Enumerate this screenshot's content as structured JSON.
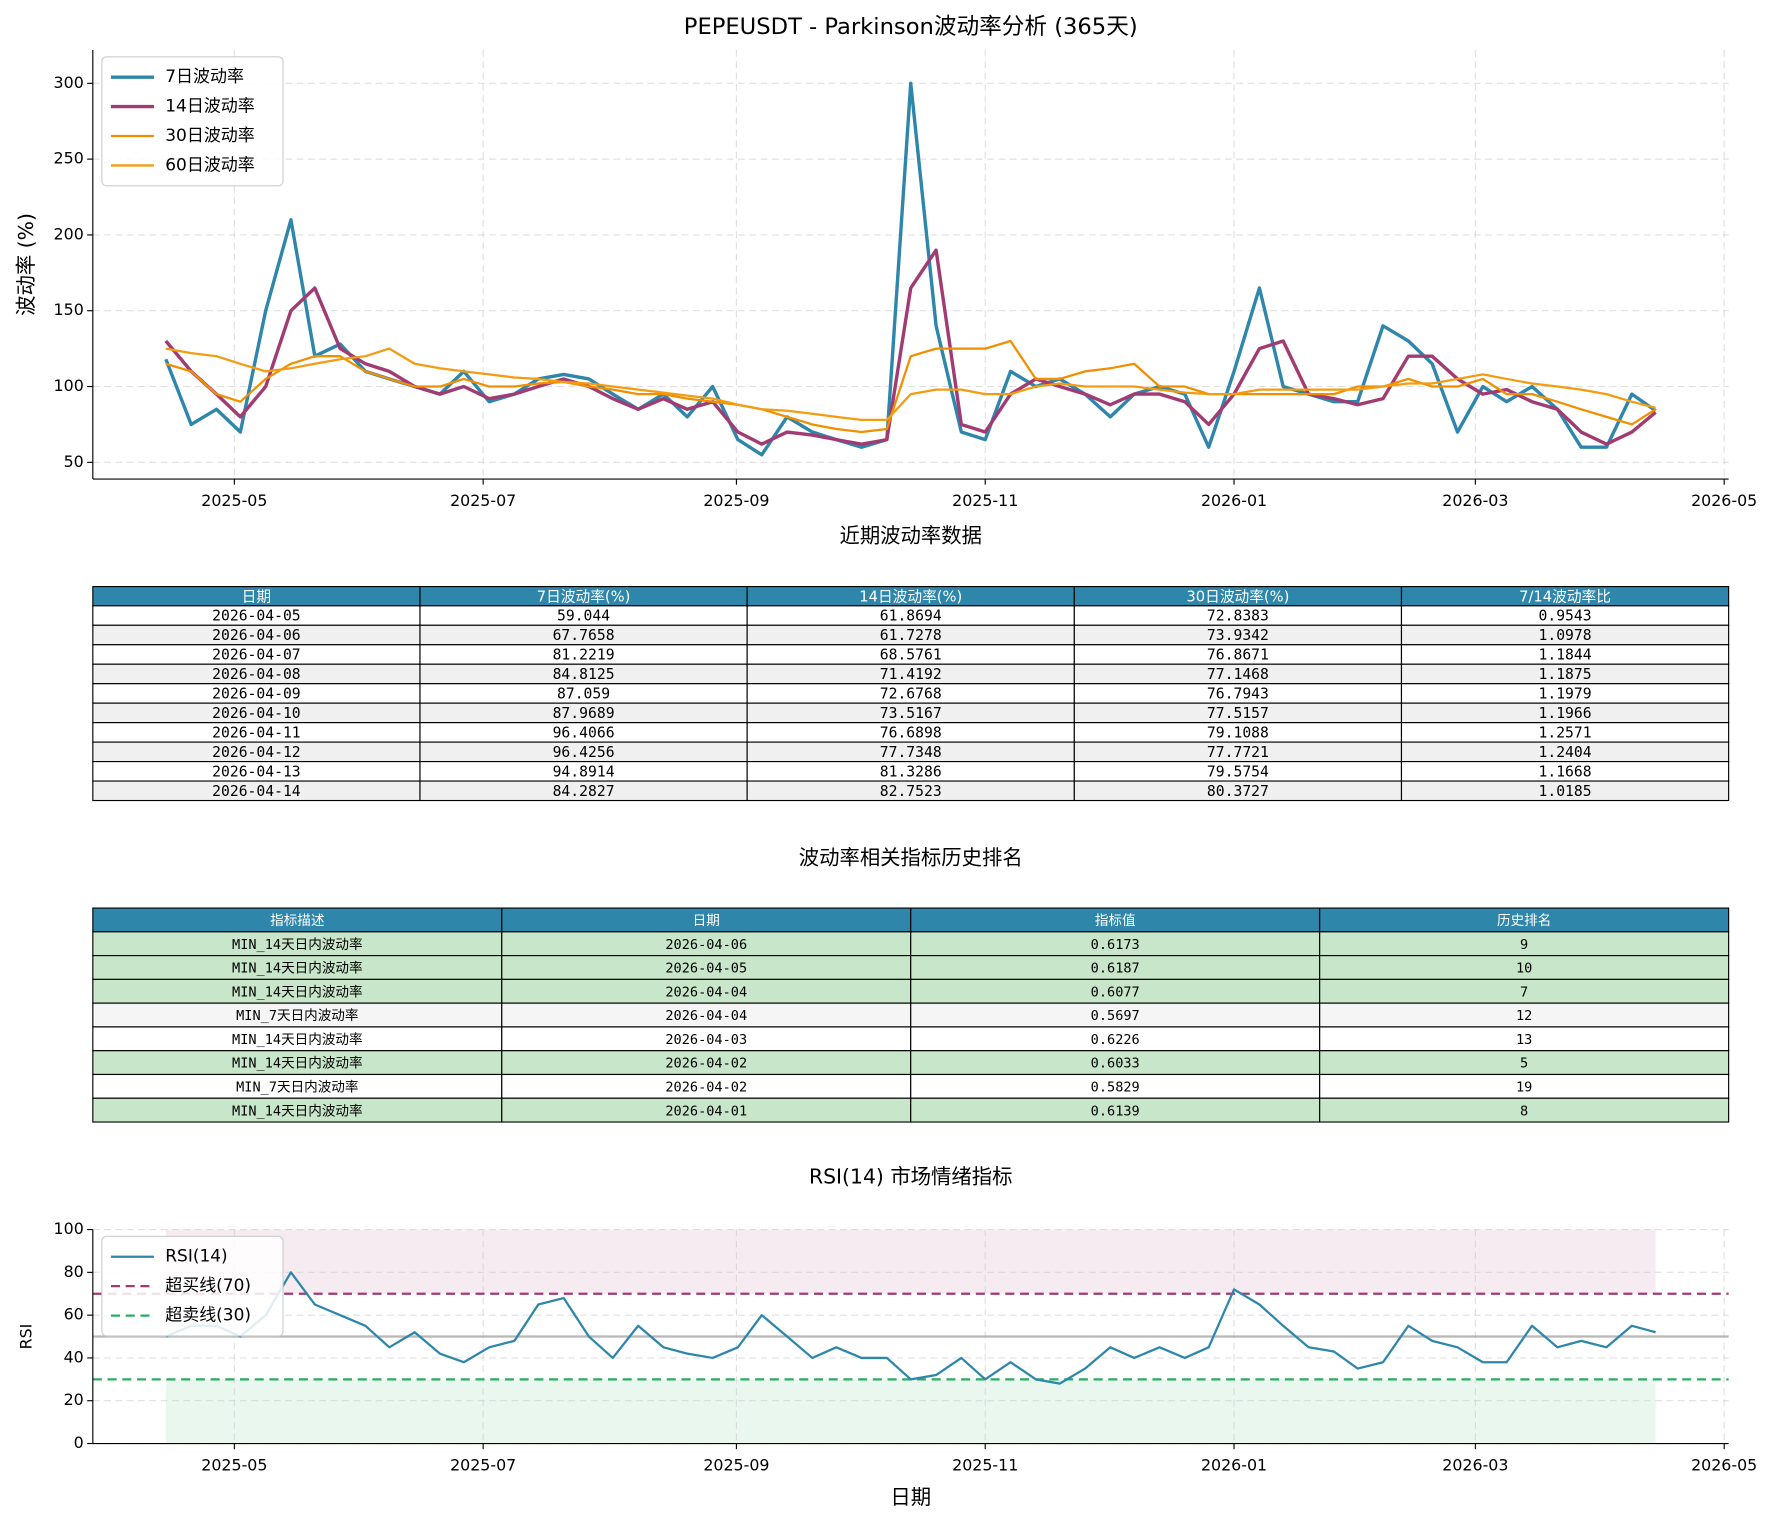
{
  "chart_data": [
    {
      "type": "line",
      "title": "PEPEUSDT - Parkinson波动率分析 (365天)",
      "ylabel": "波动率 (%)",
      "x": [
        2025.283,
        2025.3,
        2025.317,
        2025.333,
        2025.35,
        2025.367,
        2025.383,
        2025.4,
        2025.417,
        2025.433,
        2025.45,
        2025.467,
        2025.483,
        2025.5,
        2025.517,
        2025.533,
        2025.55,
        2025.567,
        2025.583,
        2025.6,
        2025.617,
        2025.633,
        2025.65,
        2025.667,
        2025.683,
        2025.7,
        2025.717,
        2025.733,
        2025.75,
        2025.767,
        2025.783,
        2025.8,
        2025.817,
        2025.833,
        2025.85,
        2025.867,
        2025.883,
        2025.9,
        2025.917,
        2025.933,
        2025.95,
        2025.967,
        2025.983,
        2026.0,
        2026.017,
        2026.033,
        2026.05,
        2026.067,
        2026.083,
        2026.1,
        2026.117,
        2026.133,
        2026.15,
        2026.167,
        2026.183,
        2026.2,
        2026.217,
        2026.233,
        2026.25,
        2026.267,
        2026.283
      ],
      "series": [
        {
          "name": "7日波动率",
          "color": "#2e86ab",
          "linewidth": 3,
          "values": [
            118,
            75,
            85,
            70,
            150,
            210,
            120,
            128,
            110,
            105,
            100,
            95,
            110,
            90,
            95,
            105,
            108,
            105,
            95,
            85,
            95,
            80,
            100,
            65,
            55,
            80,
            70,
            65,
            60,
            65,
            300,
            140,
            70,
            65,
            110,
            100,
            105,
            95,
            80,
            95,
            100,
            95,
            60,
            110,
            165,
            100,
            95,
            90,
            90,
            140,
            130,
            115,
            70,
            100,
            90,
            100,
            85,
            60,
            60,
            95,
            84
          ]
        },
        {
          "name": "14日波动率",
          "color": "#a23b72",
          "linewidth": 3,
          "values": [
            130,
            110,
            95,
            80,
            100,
            150,
            165,
            125,
            115,
            110,
            100,
            95,
            100,
            92,
            95,
            100,
            105,
            100,
            92,
            85,
            92,
            85,
            90,
            70,
            62,
            70,
            68,
            65,
            62,
            65,
            165,
            190,
            75,
            70,
            95,
            105,
            100,
            95,
            88,
            95,
            95,
            90,
            75,
            95,
            125,
            130,
            95,
            92,
            88,
            92,
            120,
            120,
            105,
            95,
            98,
            90,
            85,
            70,
            62,
            70,
            83
          ]
        },
        {
          "name": "30日波动率",
          "color": "#f18f01",
          "linewidth": 2,
          "values": [
            115,
            110,
            95,
            90,
            105,
            115,
            120,
            120,
            110,
            105,
            100,
            100,
            105,
            100,
            100,
            102,
            103,
            100,
            98,
            95,
            95,
            92,
            90,
            88,
            85,
            80,
            75,
            72,
            70,
            72,
            120,
            125,
            125,
            125,
            130,
            105,
            105,
            110,
            112,
            115,
            100,
            100,
            95,
            95,
            95,
            95,
            95,
            95,
            100,
            100,
            105,
            100,
            100,
            105,
            95,
            95,
            90,
            85,
            80,
            75,
            85
          ]
        },
        {
          "name": "60日波动率",
          "color": "#f39c12",
          "linewidth": 2,
          "values": [
            125,
            122,
            120,
            115,
            110,
            112,
            115,
            118,
            120,
            125,
            115,
            112,
            110,
            108,
            106,
            105,
            103,
            102,
            100,
            98,
            96,
            94,
            92,
            88,
            85,
            84,
            82,
            80,
            78,
            78,
            95,
            98,
            98,
            95,
            95,
            100,
            102,
            100,
            100,
            100,
            98,
            96,
            95,
            95,
            98,
            98,
            98,
            98,
            98,
            100,
            102,
            102,
            105,
            108,
            105,
            102,
            100,
            98,
            95,
            90,
            86
          ]
        }
      ],
      "xlim": [
        2025.234,
        2026.332
      ],
      "ylim": [
        39,
        322
      ],
      "xticks": [
        {
          "value": 2025.329,
          "label": "2025-05"
        },
        {
          "value": 2025.496,
          "label": "2025-07"
        },
        {
          "value": 2025.666,
          "label": "2025-09"
        },
        {
          "value": 2025.833,
          "label": "2025-11"
        },
        {
          "value": 2026.0,
          "label": "2026-01"
        },
        {
          "value": 2026.162,
          "label": "2026-03"
        },
        {
          "value": 2026.329,
          "label": "2026-05"
        }
      ],
      "yticks": [
        50,
        100,
        150,
        200,
        250,
        300
      ],
      "grid": true,
      "legend": "upper-left"
    },
    {
      "type": "line",
      "title": "RSI(14) 市场情绪指标",
      "ylabel": "RSI",
      "xlabel": "日期",
      "x": [
        2025.283,
        2025.3,
        2025.317,
        2025.333,
        2025.35,
        2025.367,
        2025.383,
        2025.4,
        2025.417,
        2025.433,
        2025.45,
        2025.467,
        2025.483,
        2025.5,
        2025.517,
        2025.533,
        2025.55,
        2025.567,
        2025.583,
        2025.6,
        2025.617,
        2025.633,
        2025.65,
        2025.667,
        2025.683,
        2025.7,
        2025.717,
        2025.733,
        2025.75,
        2025.767,
        2025.783,
        2025.8,
        2025.817,
        2025.833,
        2025.85,
        2025.867,
        2025.883,
        2025.9,
        2025.917,
        2025.933,
        2025.95,
        2025.967,
        2025.983,
        2026.0,
        2026.017,
        2026.033,
        2026.05,
        2026.067,
        2026.083,
        2026.1,
        2026.117,
        2026.133,
        2026.15,
        2026.167,
        2026.183,
        2026.2,
        2026.217,
        2026.233,
        2026.25,
        2026.267,
        2026.283
      ],
      "series": [
        {
          "name": "RSI(14)",
          "color": "#2e86ab",
          "linewidth": 2,
          "values": [
            50,
            55,
            55,
            50,
            60,
            80,
            65,
            60,
            55,
            45,
            52,
            42,
            38,
            45,
            48,
            65,
            68,
            50,
            40,
            55,
            45,
            42,
            40,
            45,
            60,
            50,
            40,
            45,
            40,
            40,
            30,
            32,
            40,
            30,
            38,
            30,
            28,
            35,
            45,
            40,
            45,
            40,
            45,
            72,
            65,
            55,
            45,
            43,
            35,
            38,
            55,
            48,
            45,
            38,
            38,
            55,
            45,
            48,
            45,
            55,
            52
          ]
        }
      ],
      "reference_lines": [
        {
          "name": "超买线(70)",
          "value": 70,
          "color": "#a23b72"
        },
        {
          "name": "超卖线(30)",
          "value": 30,
          "color": "#27ae60"
        }
      ],
      "midline": 50,
      "bands": [
        {
          "from": 70,
          "to": 100,
          "color": "#a23b72"
        },
        {
          "from": 0,
          "to": 30,
          "color": "#27ae60"
        }
      ],
      "xlim": [
        2025.234,
        2026.332
      ],
      "ylim": [
        0,
        100
      ],
      "xticks": [
        {
          "value": 2025.329,
          "label": "2025-05"
        },
        {
          "value": 2025.496,
          "label": "2025-07"
        },
        {
          "value": 2025.666,
          "label": "2025-09"
        },
        {
          "value": 2025.833,
          "label": "2025-11"
        },
        {
          "value": 2026.0,
          "label": "2026-01"
        },
        {
          "value": 2026.162,
          "label": "2026-03"
        },
        {
          "value": 2026.329,
          "label": "2026-05"
        }
      ],
      "yticks": [
        0,
        20,
        40,
        60,
        80,
        100
      ],
      "grid": true,
      "legend": "upper-left"
    }
  ],
  "tables": [
    {
      "title": "近期波动率数据",
      "header_color": "#2e86ab",
      "columns": [
        "日期",
        "7日波动率(%)",
        "14日波动率(%)",
        "30日波动率(%)",
        "7/14波动率比"
      ],
      "rows": [
        [
          "2026-04-05",
          "59.044",
          "61.8694",
          "72.8383",
          "0.9543"
        ],
        [
          "2026-04-06",
          "67.7658",
          "61.7278",
          "73.9342",
          "1.0978"
        ],
        [
          "2026-04-07",
          "81.2219",
          "68.5761",
          "76.8671",
          "1.1844"
        ],
        [
          "2026-04-08",
          "84.8125",
          "71.4192",
          "77.1468",
          "1.1875"
        ],
        [
          "2026-04-09",
          "87.059",
          "72.6768",
          "76.7943",
          "1.1979"
        ],
        [
          "2026-04-10",
          "87.9689",
          "73.5167",
          "77.5157",
          "1.1966"
        ],
        [
          "2026-04-11",
          "96.4066",
          "76.6898",
          "79.1088",
          "1.2571"
        ],
        [
          "2026-04-12",
          "96.4256",
          "77.7348",
          "77.7721",
          "1.2404"
        ],
        [
          "2026-04-13",
          "94.8914",
          "81.3286",
          "79.5754",
          "1.1668"
        ],
        [
          "2026-04-14",
          "84.2827",
          "82.7523",
          "80.3727",
          "1.0185"
        ]
      ],
      "row_colors": [
        "#ffffff",
        "#f0f0f0",
        "#ffffff",
        "#f0f0f0",
        "#ffffff",
        "#f0f0f0",
        "#ffffff",
        "#f0f0f0",
        "#ffffff",
        "#f0f0f0"
      ]
    },
    {
      "title": "波动率相关指标历史排名",
      "header_color": "#2e86ab",
      "columns": [
        "指标描述",
        "日期",
        "指标值",
        "历史排名"
      ],
      "rows": [
        [
          "MIN_14天日内波动率",
          "2026-04-06",
          "0.6173",
          "9"
        ],
        [
          "MIN_14天日内波动率",
          "2026-04-05",
          "0.6187",
          "10"
        ],
        [
          "MIN_14天日内波动率",
          "2026-04-04",
          "0.6077",
          "7"
        ],
        [
          "MIN_7天日内波动率",
          "2026-04-04",
          "0.5697",
          "12"
        ],
        [
          "MIN_14天日内波动率",
          "2026-04-03",
          "0.6226",
          "13"
        ],
        [
          "MIN_14天日内波动率",
          "2026-04-02",
          "0.6033",
          "5"
        ],
        [
          "MIN_7天日内波动率",
          "2026-04-02",
          "0.5829",
          "19"
        ],
        [
          "MIN_14天日内波动率",
          "2026-04-01",
          "0.6139",
          "8"
        ]
      ],
      "row_colors": [
        "#c8e6c9",
        "#c8e6c9",
        "#c8e6c9",
        "#f5f5f5",
        "#ffffff",
        "#c8e6c9",
        "#ffffff",
        "#c8e6c9"
      ]
    }
  ]
}
